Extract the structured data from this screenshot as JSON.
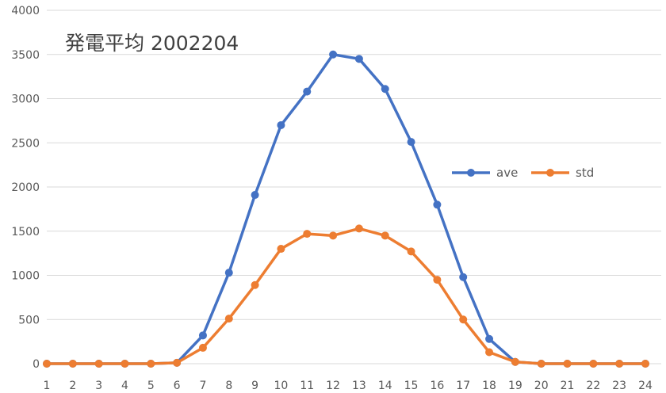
{
  "chart_data": {
    "type": "line",
    "title": "発電平均 2002204",
    "categories": [
      "1",
      "2",
      "3",
      "4",
      "5",
      "6",
      "7",
      "8",
      "9",
      "10",
      "11",
      "12",
      "13",
      "14",
      "15",
      "16",
      "17",
      "18",
      "19",
      "20",
      "21",
      "22",
      "23",
      "24"
    ],
    "y_ticks": [
      "0",
      "500",
      "1000",
      "1500",
      "2000",
      "2500",
      "3000",
      "3500",
      "4000"
    ],
    "ylim": [
      0,
      4000
    ],
    "grid": true,
    "legend_position": "right",
    "series": [
      {
        "name": "ave",
        "color": "#4472C4",
        "values": [
          0,
          0,
          0,
          0,
          0,
          10,
          320,
          1030,
          1910,
          2700,
          3080,
          3500,
          3450,
          3110,
          2510,
          1800,
          980,
          280,
          20,
          0,
          0,
          0,
          0,
          0
        ]
      },
      {
        "name": "std",
        "color": "#ED7D31",
        "values": [
          0,
          0,
          0,
          0,
          0,
          10,
          180,
          510,
          890,
          1300,
          1470,
          1450,
          1530,
          1450,
          1270,
          950,
          500,
          130,
          20,
          0,
          0,
          0,
          0,
          0
        ]
      }
    ]
  }
}
